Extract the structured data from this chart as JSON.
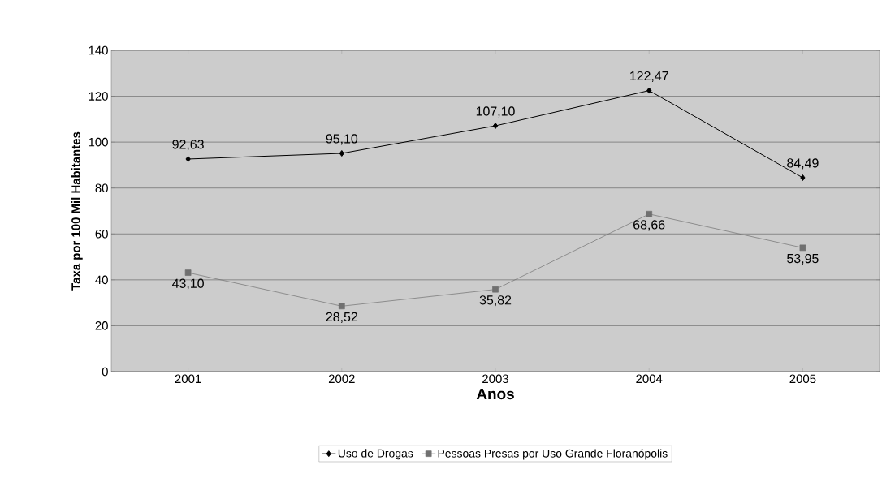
{
  "chart_data": {
    "type": "line",
    "xlabel": "Anos",
    "ylabel": "Taxa por 100 Mil Habitantes",
    "categories": [
      "2001",
      "2002",
      "2003",
      "2004",
      "2005"
    ],
    "series": [
      {
        "name": "Uso de Drogas",
        "color": "#000000",
        "marker": "diamond",
        "values": [
          92.63,
          95.1,
          107.1,
          122.47,
          84.49
        ],
        "value_labels": [
          "92,63",
          "95,10",
          "107,10",
          "122,47",
          "84,49"
        ]
      },
      {
        "name": "Pessoas Presas por Uso Grande Floranópolis",
        "color": "#707070",
        "marker": "square",
        "values": [
          43.1,
          28.52,
          35.82,
          68.66,
          53.95
        ],
        "value_labels": [
          "43,10",
          "28,52",
          "35,82",
          "68,66",
          "53,95"
        ]
      }
    ],
    "ylim": [
      0,
      140
    ],
    "yticks": [
      0,
      20,
      40,
      60,
      80,
      100,
      120,
      140
    ],
    "grid": "y",
    "legend": "bottom",
    "line_style": "solid"
  }
}
